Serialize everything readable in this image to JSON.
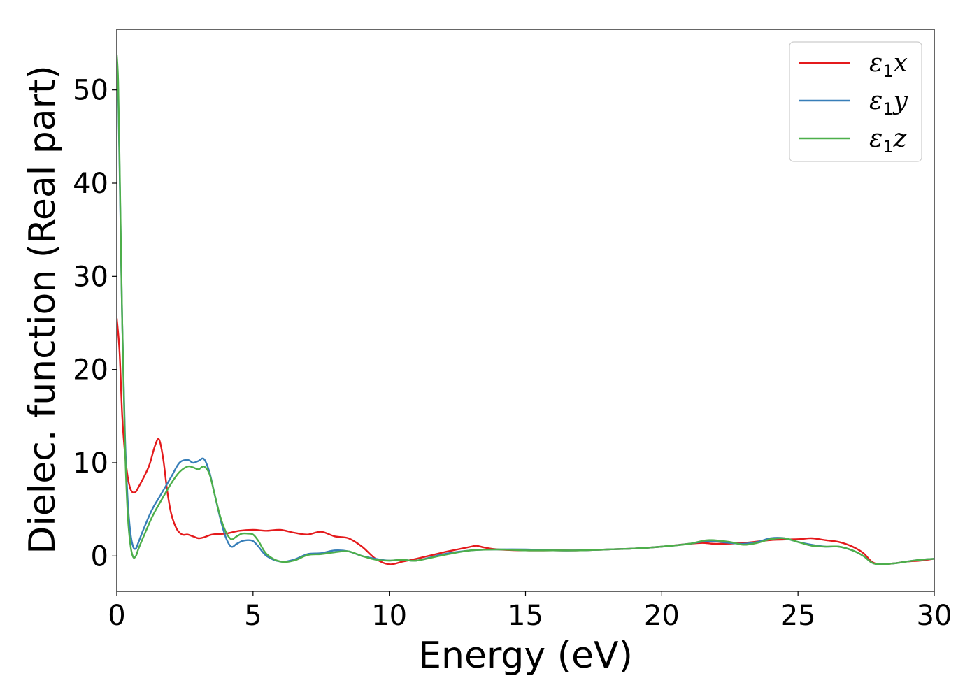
{
  "chart_data": {
    "type": "line",
    "xlabel": "Energy (eV)",
    "ylabel": "Dielec. function (Real part)",
    "xlim": [
      0,
      30
    ],
    "ylim": [
      -3.8,
      56.5
    ],
    "xticks": [
      0,
      5,
      10,
      15,
      20,
      25,
      30
    ],
    "yticks": [
      0,
      10,
      20,
      30,
      40,
      50
    ],
    "grid": false,
    "legend_position": "top-right",
    "series": [
      {
        "name": "ε1x",
        "legend_symbol": "ε",
        "legend_sub": "1",
        "legend_var": "x",
        "color": "#e41a1c",
        "x": [
          0,
          0.1,
          0.2,
          0.3,
          0.4,
          0.5,
          0.6,
          0.7,
          0.8,
          1.0,
          1.2,
          1.4,
          1.55,
          1.7,
          1.85,
          2.0,
          2.2,
          2.4,
          2.6,
          2.8,
          3.0,
          3.2,
          3.5,
          4.0,
          4.5,
          5.0,
          5.5,
          6.0,
          6.5,
          7.0,
          7.5,
          8.0,
          8.5,
          9.0,
          9.5,
          10.0,
          10.5,
          11.0,
          12.0,
          12.5,
          13.0,
          13.2,
          13.5,
          14.0,
          15.0,
          16.0,
          17.0,
          18.0,
          19.0,
          20.0,
          21.0,
          21.5,
          22.0,
          23.0,
          24.0,
          25.0,
          25.5,
          26.0,
          26.5,
          27.0,
          27.4,
          27.7,
          28.0,
          28.5,
          29.0,
          29.5,
          30.0
        ],
        "y": [
          25.5,
          22.0,
          15.0,
          11.0,
          8.5,
          7.2,
          6.8,
          6.9,
          7.4,
          8.5,
          9.8,
          11.8,
          12.5,
          10.5,
          7.0,
          4.5,
          2.9,
          2.3,
          2.3,
          2.1,
          1.9,
          2.0,
          2.3,
          2.4,
          2.7,
          2.8,
          2.7,
          2.8,
          2.5,
          2.3,
          2.6,
          2.1,
          1.9,
          1.0,
          -0.3,
          -0.9,
          -0.6,
          -0.3,
          0.4,
          0.7,
          1.0,
          1.1,
          0.9,
          0.7,
          0.6,
          0.6,
          0.6,
          0.7,
          0.8,
          1.0,
          1.3,
          1.4,
          1.3,
          1.4,
          1.7,
          1.8,
          1.9,
          1.7,
          1.5,
          1.0,
          0.3,
          -0.6,
          -0.9,
          -0.8,
          -0.6,
          -0.5,
          -0.3
        ]
      },
      {
        "name": "ε1y",
        "legend_symbol": "ε",
        "legend_sub": "1",
        "legend_var": "y",
        "color": "#377eb8",
        "x": [
          0,
          0.05,
          0.1,
          0.2,
          0.3,
          0.4,
          0.5,
          0.6,
          0.7,
          0.8,
          1.0,
          1.3,
          1.6,
          2.0,
          2.3,
          2.6,
          2.8,
          3.0,
          3.2,
          3.4,
          3.6,
          3.8,
          4.0,
          4.2,
          4.4,
          4.6,
          4.8,
          5.0,
          5.2,
          5.5,
          6.0,
          6.5,
          7.0,
          7.5,
          8.0,
          8.5,
          9.0,
          9.5,
          10.0,
          10.5,
          11.0,
          12.0,
          13.0,
          14.0,
          15.0,
          16.0,
          17.0,
          18.0,
          19.0,
          20.0,
          21.0,
          21.7,
          22.5,
          23.0,
          23.5,
          24.0,
          24.5,
          25.0,
          25.5,
          26.0,
          26.5,
          27.0,
          27.4,
          27.7,
          28.0,
          28.5,
          29.0,
          29.5,
          30.0
        ],
        "y": [
          53.0,
          50.0,
          42.0,
          25.0,
          13.0,
          6.0,
          2.5,
          1.0,
          0.8,
          1.5,
          3.0,
          5.0,
          6.5,
          8.5,
          10.0,
          10.3,
          10.0,
          10.2,
          10.4,
          9.0,
          6.5,
          4.0,
          2.0,
          1.0,
          1.3,
          1.6,
          1.7,
          1.6,
          1.0,
          0.0,
          -0.6,
          -0.4,
          0.2,
          0.3,
          0.6,
          0.5,
          0.0,
          -0.3,
          -0.5,
          -0.4,
          -0.5,
          0.2,
          0.6,
          0.7,
          0.7,
          0.6,
          0.6,
          0.7,
          0.8,
          1.0,
          1.3,
          1.6,
          1.4,
          1.3,
          1.5,
          1.9,
          1.9,
          1.5,
          1.2,
          1.0,
          1.0,
          0.6,
          0.0,
          -0.7,
          -0.9,
          -0.8,
          -0.6,
          -0.4,
          -0.3
        ]
      },
      {
        "name": "ε1z",
        "legend_symbol": "ε",
        "legend_sub": "1",
        "legend_var": "z",
        "color": "#4daf4a",
        "x": [
          0,
          0.05,
          0.1,
          0.2,
          0.3,
          0.4,
          0.5,
          0.6,
          0.7,
          0.8,
          1.0,
          1.3,
          1.6,
          2.0,
          2.3,
          2.6,
          2.8,
          3.0,
          3.2,
          3.4,
          3.6,
          3.8,
          4.0,
          4.2,
          4.4,
          4.6,
          4.8,
          5.0,
          5.2,
          5.5,
          6.0,
          6.5,
          7.0,
          7.5,
          8.0,
          8.5,
          9.0,
          9.5,
          10.0,
          10.5,
          11.0,
          12.0,
          13.0,
          14.0,
          15.0,
          16.0,
          17.0,
          18.0,
          19.0,
          20.0,
          21.0,
          21.7,
          22.5,
          23.0,
          23.5,
          24.0,
          24.5,
          25.0,
          25.5,
          26.0,
          26.5,
          27.0,
          27.4,
          27.7,
          28.0,
          28.5,
          29.0,
          29.5,
          30.0
        ],
        "y": [
          53.8,
          51.0,
          43.0,
          25.0,
          12.0,
          4.5,
          1.2,
          -0.1,
          0.0,
          0.8,
          2.2,
          4.2,
          5.8,
          7.8,
          9.0,
          9.6,
          9.5,
          9.3,
          9.6,
          8.8,
          6.5,
          4.2,
          2.6,
          1.8,
          2.1,
          2.4,
          2.4,
          2.3,
          1.6,
          0.2,
          -0.6,
          -0.5,
          0.1,
          0.2,
          0.4,
          0.5,
          0.0,
          -0.4,
          -0.5,
          -0.4,
          -0.5,
          0.1,
          0.6,
          0.7,
          0.6,
          0.6,
          0.6,
          0.7,
          0.8,
          1.0,
          1.3,
          1.7,
          1.5,
          1.2,
          1.4,
          1.8,
          1.9,
          1.5,
          1.1,
          1.0,
          1.0,
          0.6,
          0.0,
          -0.7,
          -0.9,
          -0.8,
          -0.6,
          -0.4,
          -0.3
        ]
      }
    ]
  }
}
